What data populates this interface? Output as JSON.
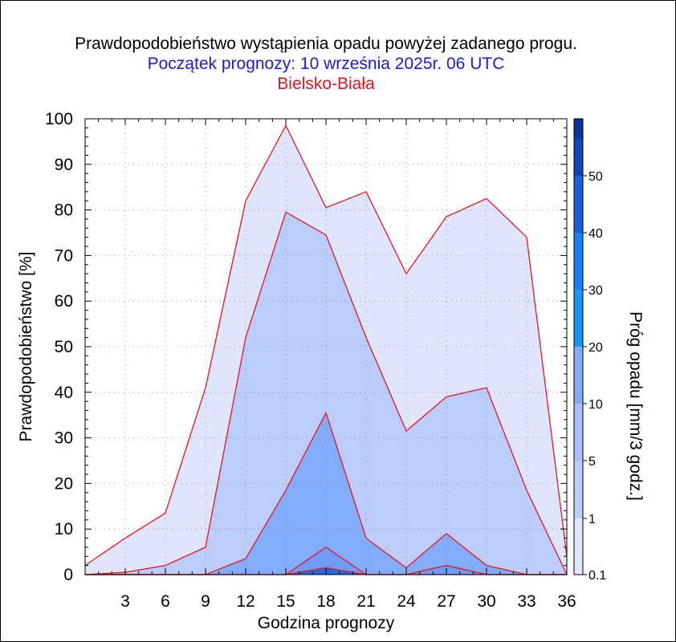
{
  "titles": {
    "line1": "Prawdopodobieństwo wystąpienia opadu powyżej zadanego progu.",
    "line2": "Początek prognozy: 10 września 2025r. 06 UTC",
    "line3": "Bielsko-Biała"
  },
  "colors": {
    "title_line2": "#1a1ae6",
    "title_line3": "#e6141e",
    "band_outline": "#e6141e"
  },
  "chart_data": {
    "type": "area",
    "title": "Prawdopodobieństwo wystąpienia opadu powyżej zadanego progu.",
    "subtitle": "Początek prognozy: 10 września 2025r. 06 UTC",
    "location": "Bielsko-Biała",
    "xlabel": "Godzina prognozy",
    "ylabel": "Prawdopodobieństwo [%]",
    "colorbar_label": "Próg opadu [mm/3 godz.]",
    "xlim": [
      0,
      36
    ],
    "ylim": [
      0,
      100
    ],
    "x_ticks": [
      3,
      6,
      9,
      12,
      15,
      18,
      21,
      24,
      27,
      30,
      33,
      36
    ],
    "y_ticks": [
      0,
      10,
      20,
      30,
      40,
      50,
      60,
      70,
      80,
      90,
      100
    ],
    "grid": true,
    "x": [
      0,
      3,
      6,
      9,
      12,
      15,
      18,
      21,
      24,
      27,
      30,
      33,
      36
    ],
    "series": [
      {
        "name": "0.1",
        "color": "#dfe5fc",
        "values": [
          2,
          8,
          13.5,
          41,
          82,
          98.5,
          80.5,
          84,
          66,
          78.5,
          82.5,
          74,
          4
        ]
      },
      {
        "name": "1",
        "color": "#bdcdfb",
        "values": [
          0,
          0.5,
          2,
          6,
          52,
          79.5,
          74.5,
          52,
          31.5,
          39,
          41,
          18.5,
          0
        ]
      },
      {
        "name": "5",
        "color": "#83adfb",
        "values": [
          0,
          0,
          0,
          0,
          3.5,
          18.5,
          35.5,
          8,
          1.5,
          9,
          2,
          0,
          0
        ]
      },
      {
        "name": "10",
        "color": "#6f9af5",
        "values": [
          0,
          0,
          0,
          0,
          0,
          0,
          6,
          0,
          0,
          2,
          0,
          0,
          0
        ]
      },
      {
        "name": "20",
        "color": "#2469e0",
        "values": [
          0,
          0,
          0,
          0,
          0,
          0,
          1.5,
          0,
          0,
          0,
          0,
          0,
          0
        ]
      }
    ],
    "colorbar": {
      "labels": [
        "0.1",
        "1",
        "5",
        "10",
        "20",
        "30",
        "40",
        "50"
      ],
      "segment_colors": [
        "#dfe5fc",
        "#bdcdfb",
        "#a9c0fb",
        "#83adfb",
        "#1a94f6",
        "#1a7ff0",
        "#1a60d8",
        "#0f45b8",
        "#0c339a"
      ]
    }
  }
}
